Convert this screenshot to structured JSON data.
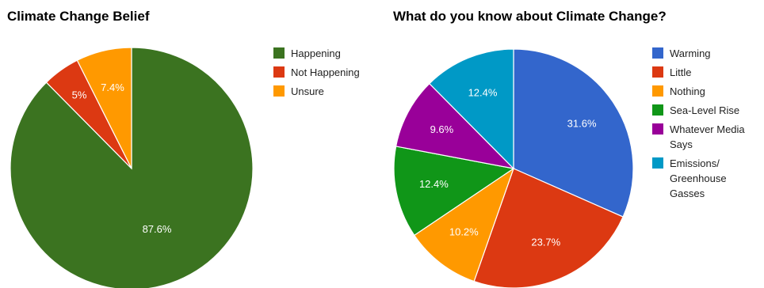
{
  "chart_data": [
    {
      "type": "pie",
      "title": "Climate Change Belief",
      "legend_position": "right",
      "slices": [
        {
          "label": "Happening",
          "value": 87.6,
          "display": "87.6%",
          "color": "#3b7320"
        },
        {
          "label": "Not Happening",
          "value": 5,
          "display": "5%",
          "color": "#dc3912"
        },
        {
          "label": "Unsure",
          "value": 7.4,
          "display": "7.4%",
          "color": "#ff9900"
        }
      ]
    },
    {
      "type": "pie",
      "title": "What do you know about Climate Change?",
      "legend_position": "right",
      "slices": [
        {
          "label": "Warming",
          "value": 31.6,
          "display": "31.6%",
          "color": "#3366cc"
        },
        {
          "label": "Little",
          "value": 23.7,
          "display": "23.7%",
          "color": "#dc3912"
        },
        {
          "label": "Nothing",
          "value": 10.2,
          "display": "10.2%",
          "color": "#ff9900"
        },
        {
          "label": "Sea-Level Rise",
          "value": 12.4,
          "display": "12.4%",
          "color": "#109618"
        },
        {
          "label": "Whatever Media Says",
          "value": 9.6,
          "display": "9.6%",
          "color": "#990099"
        },
        {
          "label": "Emissions/ Greenhouse Gasses",
          "value": 12.4,
          "display": "12.4%",
          "color": "#0099c6"
        }
      ]
    }
  ]
}
